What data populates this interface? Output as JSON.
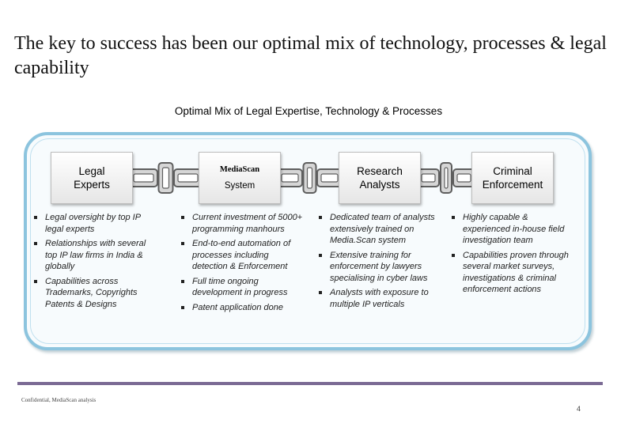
{
  "title": "The key to success has been our optimal mix of technology, processes & legal capability",
  "subtitle": "Optimal Mix of Legal Expertise, Technology & Processes",
  "colors": {
    "frame_border": "#8cc4de",
    "rule": "#7b6a94",
    "chain_dark": "#5e5e5e",
    "chain_light": "#d6d6d6"
  },
  "pillars": [
    {
      "label_line1": "Legal",
      "label_line2": "Experts",
      "bullets": [
        "Legal oversight by top IP legal experts",
        "Relationships with several top IP law firms in India & globally",
        "Capabilities across Trademarks, Copyrights Patents & Designs"
      ]
    },
    {
      "label_line1": "MediaScan",
      "label_line2": "System",
      "bullets": [
        "Current investment of 5000+ programming manhours",
        "End-to-end automation of processes including detection & Enforcement",
        "Full time ongoing development in progress",
        "Patent application done"
      ]
    },
    {
      "label_line1": "Research",
      "label_line2": "Analysts",
      "bullets": [
        "Dedicated team of analysts extensively trained on Media.Scan system",
        "Extensive training for enforcement by lawyers specialising in cyber laws",
        "Analysts with exposure to multiple IP verticals"
      ]
    },
    {
      "label_line1": "Criminal",
      "label_line2": "Enforcement",
      "bullets": [
        "Highly capable & experienced in-house field investigation team",
        "Capabilities proven through several market surveys, investigations & criminal enforcement actions"
      ]
    }
  ],
  "footnote": "Confidential, MediaScan analysis",
  "page_number": "4"
}
